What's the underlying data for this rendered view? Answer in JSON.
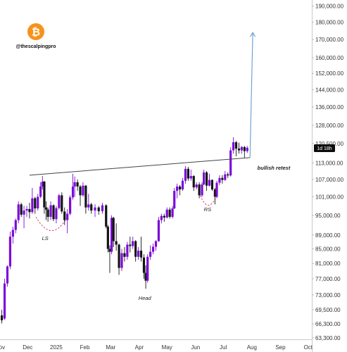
{
  "brand": {
    "handle": "@thescalpingpro",
    "logo_color": "#F7931A",
    "logo_glyph": "₿"
  },
  "colors": {
    "up": "#7b0bd9",
    "down": "#141414",
    "neckline": "#444444",
    "target": "#6ea4d9",
    "dashed": "#e0407a",
    "badge": "#0c0c0c"
  },
  "price_badge": "1d 18h",
  "chart_data": {
    "type": "candlestick",
    "title": "",
    "xlabel": "",
    "ylabel": "",
    "scale": "log",
    "ylim": [
      63000,
      192000
    ],
    "xlim": [
      "2024-11-01",
      "2025-10-05"
    ],
    "grid": false,
    "y_ticks": [
      "190,000.00",
      "180,000.00",
      "170,000.00",
      "160,000.00",
      "152,000.00",
      "144,000.00",
      "136,000.00",
      "128,000.00",
      "120,500.00",
      "113,000.00",
      "107,000.00",
      "101,000.00",
      "95,000.00",
      "89,000.00",
      "85,000.00",
      "81,000.00",
      "77,000.00",
      "73,000.00",
      "69,500.00",
      "66,300.00",
      "63,300.00"
    ],
    "x_ticks": [
      {
        "date": "2024-11-01",
        "label": "Nov"
      },
      {
        "date": "2024-12-01",
        "label": "Dec"
      },
      {
        "date": "2025-01-01",
        "label": "2025"
      },
      {
        "date": "2025-02-01",
        "label": "Feb"
      },
      {
        "date": "2025-03-01",
        "label": "Mar"
      },
      {
        "date": "2025-04-01",
        "label": "Apr"
      },
      {
        "date": "2025-05-01",
        "label": "May"
      },
      {
        "date": "2025-06-01",
        "label": "Jun"
      },
      {
        "date": "2025-07-01",
        "label": "Jul"
      },
      {
        "date": "2025-08-01",
        "label": "Aug"
      },
      {
        "date": "2025-09-01",
        "label": "Sep"
      },
      {
        "date": "2025-10-01",
        "label": "Oct"
      }
    ],
    "candles": [
      {
        "date": "2024-11-03",
        "o": 68200,
        "h": 69500,
        "l": 66400,
        "c": 67100
      },
      {
        "date": "2024-11-06",
        "o": 67500,
        "h": 77000,
        "l": 67200,
        "c": 75800
      },
      {
        "date": "2024-11-09",
        "o": 75800,
        "h": 80500,
        "l": 75000,
        "c": 80200
      },
      {
        "date": "2024-11-12",
        "o": 80200,
        "h": 90000,
        "l": 79500,
        "c": 88500
      },
      {
        "date": "2024-11-15",
        "o": 88500,
        "h": 91500,
        "l": 86500,
        "c": 90500
      },
      {
        "date": "2024-11-18",
        "o": 90500,
        "h": 94000,
        "l": 89500,
        "c": 93500
      },
      {
        "date": "2024-11-21",
        "o": 93500,
        "h": 99500,
        "l": 92500,
        "c": 98500
      },
      {
        "date": "2024-11-24",
        "o": 98500,
        "h": 99000,
        "l": 94500,
        "c": 95200
      },
      {
        "date": "2024-11-27",
        "o": 95200,
        "h": 98000,
        "l": 91000,
        "c": 96500
      },
      {
        "date": "2024-11-30",
        "o": 96500,
        "h": 98000,
        "l": 94500,
        "c": 97000
      },
      {
        "date": "2024-12-03",
        "o": 97000,
        "h": 99000,
        "l": 94000,
        "c": 96000
      },
      {
        "date": "2024-12-06",
        "o": 96000,
        "h": 104000,
        "l": 95500,
        "c": 100500
      },
      {
        "date": "2024-12-09",
        "o": 100500,
        "h": 101000,
        "l": 95500,
        "c": 97200
      },
      {
        "date": "2024-12-12",
        "o": 97200,
        "h": 102000,
        "l": 96500,
        "c": 101000
      },
      {
        "date": "2024-12-15",
        "o": 101000,
        "h": 106000,
        "l": 100500,
        "c": 104500
      },
      {
        "date": "2024-12-17",
        "o": 104500,
        "h": 108200,
        "l": 103500,
        "c": 106200
      },
      {
        "date": "2024-12-19",
        "o": 106200,
        "h": 106500,
        "l": 95500,
        "c": 97500
      },
      {
        "date": "2024-12-21",
        "o": 97500,
        "h": 99500,
        "l": 93500,
        "c": 96800
      },
      {
        "date": "2024-12-23",
        "o": 96800,
        "h": 97500,
        "l": 93000,
        "c": 94500
      },
      {
        "date": "2024-12-26",
        "o": 94500,
        "h": 99500,
        "l": 93500,
        "c": 98200
      },
      {
        "date": "2024-12-29",
        "o": 98200,
        "h": 98500,
        "l": 93200,
        "c": 93800
      },
      {
        "date": "2025-01-01",
        "o": 93800,
        "h": 98000,
        "l": 92500,
        "c": 97300
      },
      {
        "date": "2025-01-04",
        "o": 97300,
        "h": 102000,
        "l": 96800,
        "c": 101500
      },
      {
        "date": "2025-01-07",
        "o": 101500,
        "h": 102500,
        "l": 95500,
        "c": 96200
      },
      {
        "date": "2025-01-10",
        "o": 96200,
        "h": 97500,
        "l": 92000,
        "c": 93500
      },
      {
        "date": "2025-01-13",
        "o": 93500,
        "h": 97000,
        "l": 89500,
        "c": 95500
      },
      {
        "date": "2025-01-16",
        "o": 95500,
        "h": 101500,
        "l": 95000,
        "c": 100800
      },
      {
        "date": "2025-01-19",
        "o": 100800,
        "h": 109000,
        "l": 100000,
        "c": 104500
      },
      {
        "date": "2025-01-21",
        "o": 104500,
        "h": 108000,
        "l": 101000,
        "c": 106000
      },
      {
        "date": "2025-01-24",
        "o": 106000,
        "h": 107000,
        "l": 103000,
        "c": 104500
      },
      {
        "date": "2025-01-27",
        "o": 104500,
        "h": 105000,
        "l": 98000,
        "c": 101500
      },
      {
        "date": "2025-01-30",
        "o": 101500,
        "h": 106000,
        "l": 101000,
        "c": 104800
      },
      {
        "date": "2025-02-02",
        "o": 104800,
        "h": 105000,
        "l": 95500,
        "c": 97500
      },
      {
        "date": "2025-02-05",
        "o": 97500,
        "h": 102000,
        "l": 96500,
        "c": 98500
      },
      {
        "date": "2025-02-08",
        "o": 98500,
        "h": 99000,
        "l": 95500,
        "c": 96500
      },
      {
        "date": "2025-02-12",
        "o": 96500,
        "h": 98500,
        "l": 94500,
        "c": 97500
      },
      {
        "date": "2025-02-16",
        "o": 97500,
        "h": 98000,
        "l": 95200,
        "c": 96300
      },
      {
        "date": "2025-02-20",
        "o": 96300,
        "h": 99000,
        "l": 95500,
        "c": 98200
      },
      {
        "date": "2025-02-24",
        "o": 98200,
        "h": 98500,
        "l": 91000,
        "c": 91500
      },
      {
        "date": "2025-02-26",
        "o": 91500,
        "h": 92000,
        "l": 84000,
        "c": 85000
      },
      {
        "date": "2025-02-28",
        "o": 85000,
        "h": 86000,
        "l": 78500,
        "c": 84200
      },
      {
        "date": "2025-03-02",
        "o": 84200,
        "h": 95000,
        "l": 83500,
        "c": 94200
      },
      {
        "date": "2025-03-04",
        "o": 94200,
        "h": 94500,
        "l": 85500,
        "c": 87200
      },
      {
        "date": "2025-03-07",
        "o": 87200,
        "h": 92500,
        "l": 84500,
        "c": 86200
      },
      {
        "date": "2025-03-10",
        "o": 86200,
        "h": 86500,
        "l": 78000,
        "c": 79800
      },
      {
        "date": "2025-03-13",
        "o": 79800,
        "h": 85000,
        "l": 79000,
        "c": 83800
      },
      {
        "date": "2025-03-16",
        "o": 83800,
        "h": 85500,
        "l": 81500,
        "c": 82800
      },
      {
        "date": "2025-03-19",
        "o": 82800,
        "h": 87000,
        "l": 82000,
        "c": 86200
      },
      {
        "date": "2025-03-22",
        "o": 86200,
        "h": 88500,
        "l": 84000,
        "c": 85800
      },
      {
        "date": "2025-03-25",
        "o": 85800,
        "h": 88500,
        "l": 85000,
        "c": 87200
      },
      {
        "date": "2025-03-28",
        "o": 87200,
        "h": 87500,
        "l": 81500,
        "c": 82800
      },
      {
        "date": "2025-03-31",
        "o": 82800,
        "h": 85500,
        "l": 82000,
        "c": 84500
      },
      {
        "date": "2025-04-03",
        "o": 84500,
        "h": 88500,
        "l": 81500,
        "c": 82600
      },
      {
        "date": "2025-04-06",
        "o": 82600,
        "h": 83500,
        "l": 77000,
        "c": 78500
      },
      {
        "date": "2025-04-08",
        "o": 78500,
        "h": 80500,
        "l": 74500,
        "c": 76500
      },
      {
        "date": "2025-04-10",
        "o": 76500,
        "h": 83500,
        "l": 76000,
        "c": 82800
      },
      {
        "date": "2025-04-13",
        "o": 82800,
        "h": 86000,
        "l": 82000,
        "c": 84200
      },
      {
        "date": "2025-04-16",
        "o": 84200,
        "h": 86500,
        "l": 83500,
        "c": 85600
      },
      {
        "date": "2025-04-19",
        "o": 85600,
        "h": 87500,
        "l": 84500,
        "c": 87200
      },
      {
        "date": "2025-04-22",
        "o": 87200,
        "h": 94500,
        "l": 87000,
        "c": 93500
      },
      {
        "date": "2025-04-25",
        "o": 93500,
        "h": 95500,
        "l": 92500,
        "c": 94800
      },
      {
        "date": "2025-04-28",
        "o": 94800,
        "h": 95500,
        "l": 93000,
        "c": 94300
      },
      {
        "date": "2025-05-01",
        "o": 94300,
        "h": 97500,
        "l": 94000,
        "c": 96800
      },
      {
        "date": "2025-05-04",
        "o": 96800,
        "h": 97500,
        "l": 94000,
        "c": 94500
      },
      {
        "date": "2025-05-07",
        "o": 94500,
        "h": 98000,
        "l": 94000,
        "c": 97200
      },
      {
        "date": "2025-05-09",
        "o": 97200,
        "h": 104000,
        "l": 97000,
        "c": 103000
      },
      {
        "date": "2025-05-12",
        "o": 103000,
        "h": 105500,
        "l": 100500,
        "c": 104500
      },
      {
        "date": "2025-05-15",
        "o": 104500,
        "h": 105000,
        "l": 101500,
        "c": 103500
      },
      {
        "date": "2025-05-18",
        "o": 103500,
        "h": 107500,
        "l": 103000,
        "c": 106500
      },
      {
        "date": "2025-05-21",
        "o": 106500,
        "h": 111800,
        "l": 105500,
        "c": 110800
      },
      {
        "date": "2025-05-24",
        "o": 110800,
        "h": 111500,
        "l": 106500,
        "c": 107300
      },
      {
        "date": "2025-05-27",
        "o": 107300,
        "h": 110500,
        "l": 106500,
        "c": 108200
      },
      {
        "date": "2025-05-30",
        "o": 108200,
        "h": 108500,
        "l": 103000,
        "c": 104200
      },
      {
        "date": "2025-06-02",
        "o": 104200,
        "h": 106000,
        "l": 103500,
        "c": 105200
      },
      {
        "date": "2025-06-05",
        "o": 105200,
        "h": 106000,
        "l": 100500,
        "c": 101500
      },
      {
        "date": "2025-06-08",
        "o": 101500,
        "h": 106000,
        "l": 101000,
        "c": 105200
      },
      {
        "date": "2025-06-10",
        "o": 105200,
        "h": 110500,
        "l": 105000,
        "c": 109500
      },
      {
        "date": "2025-06-13",
        "o": 109500,
        "h": 110000,
        "l": 103000,
        "c": 104800
      },
      {
        "date": "2025-06-16",
        "o": 104800,
        "h": 109000,
        "l": 104500,
        "c": 106800
      },
      {
        "date": "2025-06-19",
        "o": 106800,
        "h": 107000,
        "l": 103000,
        "c": 103500
      },
      {
        "date": "2025-06-22",
        "o": 103500,
        "h": 104000,
        "l": 98500,
        "c": 101000
      },
      {
        "date": "2025-06-24",
        "o": 101000,
        "h": 106500,
        "l": 100500,
        "c": 105800
      },
      {
        "date": "2025-06-27",
        "o": 105800,
        "h": 108500,
        "l": 105000,
        "c": 107500
      },
      {
        "date": "2025-06-30",
        "o": 107500,
        "h": 108500,
        "l": 105500,
        "c": 106800
      },
      {
        "date": "2025-07-03",
        "o": 106800,
        "h": 110000,
        "l": 106500,
        "c": 108800
      },
      {
        "date": "2025-07-06",
        "o": 108800,
        "h": 109500,
        "l": 107500,
        "c": 108400
      },
      {
        "date": "2025-07-09",
        "o": 108400,
        "h": 119000,
        "l": 108000,
        "c": 117800
      },
      {
        "date": "2025-07-12",
        "o": 117800,
        "h": 123000,
        "l": 116500,
        "c": 121000
      },
      {
        "date": "2025-07-15",
        "o": 121000,
        "h": 121500,
        "l": 115500,
        "c": 118500
      },
      {
        "date": "2025-07-18",
        "o": 118500,
        "h": 120800,
        "l": 116500,
        "c": 117800
      },
      {
        "date": "2025-07-21",
        "o": 117800,
        "h": 119500,
        "l": 116500,
        "c": 119100
      },
      {
        "date": "2025-07-24",
        "o": 119100,
        "h": 119500,
        "l": 115000,
        "c": 117500
      },
      {
        "date": "2025-07-27",
        "o": 117500,
        "h": 119500,
        "l": 116800,
        "c": 118800
      }
    ],
    "neckline": [
      {
        "date": "2024-12-03",
        "y": 108500
      },
      {
        "date": "2025-07-30",
        "y": 115000
      }
    ],
    "target_arrow": [
      {
        "date": "2025-07-30",
        "y": 115000
      },
      {
        "date": "2025-08-02",
        "y": 174000
      }
    ],
    "annotations": [
      {
        "text": "LS",
        "date": "2024-12-20",
        "y": 87500
      },
      {
        "text": "Head",
        "date": "2025-04-07",
        "y": 71800
      },
      {
        "text": "RS",
        "date": "2025-06-14",
        "y": 96300
      },
      {
        "text": "bullish retest",
        "date": "2025-08-07",
        "y": 110500
      }
    ],
    "dashed_arcs": [
      {
        "from": "2024-12-10",
        "to": "2025-01-13",
        "y_top": 94500,
        "y_bottom": 90300
      },
      {
        "from": "2025-06-06",
        "to": "2025-06-24",
        "y_top": 101500,
        "y_bottom": 98200
      }
    ]
  }
}
